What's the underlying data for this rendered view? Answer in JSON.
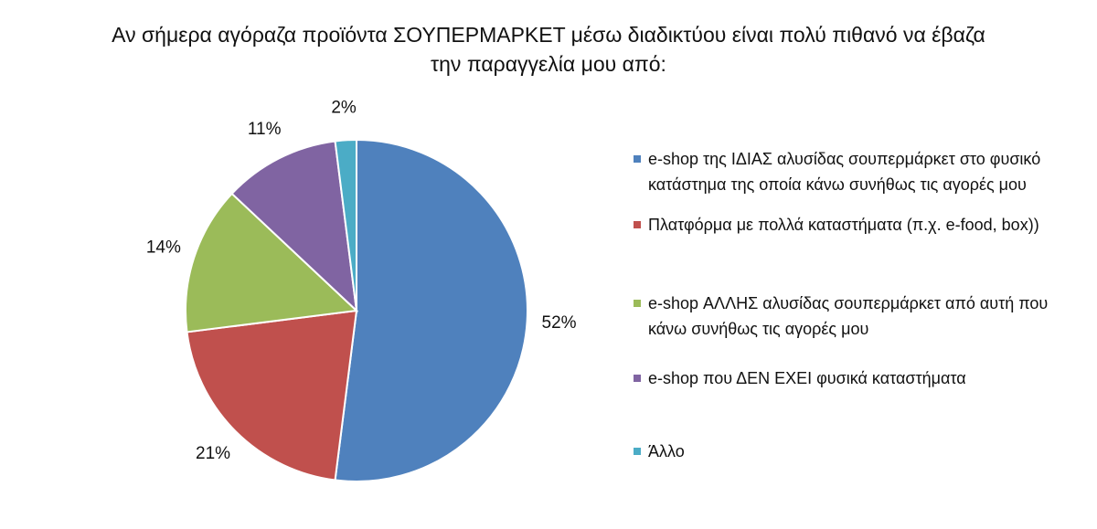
{
  "chart_data": {
    "type": "pie",
    "title": "Αν σήμερα αγόραζα προϊόντα ΣΟΥΠΕΡΜΑΡΚΕΤ μέσω διαδικτύου είναι πολύ πιθανό να έβαζα την παραγγελία μου από:",
    "categories": [
      "e-shop της ΙΔΙΑΣ αλυσίδας σουπερμάρκετ στο φυσικό κατάστημα της οποία κάνω συνήθως τις αγορές μου",
      "Πλατφόρμα με πολλά καταστήματα (π.χ. e-food, box))",
      "e-shop ΑΛΛΗΣ αλυσίδας σουπερμάρκετ από αυτή που κάνω συνήθως τις αγορές μου",
      "e-shop που ΔΕΝ ΕΧΕΙ φυσικά καταστήματα",
      "Άλλο"
    ],
    "values": [
      52,
      21,
      14,
      11,
      2
    ],
    "value_labels": [
      "52%",
      "21%",
      "14%",
      "11%",
      "2%"
    ],
    "colors": [
      "#4f81bd",
      "#c0504d",
      "#9bbb59",
      "#8064a2",
      "#4bacc6"
    ],
    "legend": "right"
  }
}
